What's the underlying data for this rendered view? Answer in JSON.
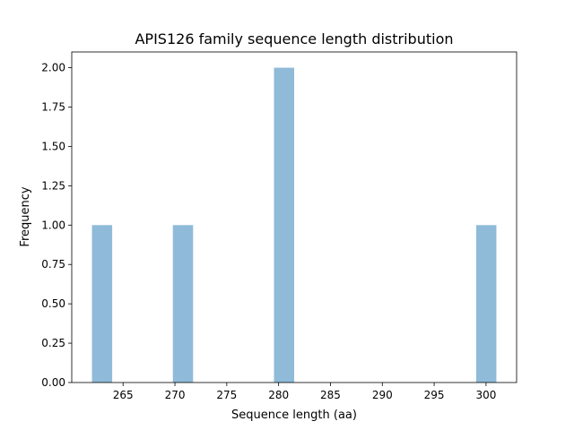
{
  "chart_data": {
    "type": "bar",
    "subtype": "histogram",
    "title": "APIS126 family sequence length distribution",
    "xlabel": "Sequence length (aa)",
    "ylabel": "Frequency",
    "bin_range": [
      262,
      301
    ],
    "bin_count": 20,
    "counts": [
      1,
      0,
      0,
      0,
      1,
      0,
      0,
      0,
      0,
      2,
      0,
      0,
      0,
      0,
      0,
      0,
      0,
      0,
      0,
      1
    ],
    "xlim": [
      260.05,
      302.95
    ],
    "ylim": [
      0,
      2.1
    ],
    "xticks": [
      265,
      270,
      275,
      280,
      285,
      290,
      295,
      300
    ],
    "yticks": [
      "0.00",
      "0.25",
      "0.50",
      "0.75",
      "1.00",
      "1.25",
      "1.50",
      "1.75",
      "2.00"
    ],
    "bar_color": "#8fbbd9",
    "grid": false,
    "legend": "none"
  }
}
